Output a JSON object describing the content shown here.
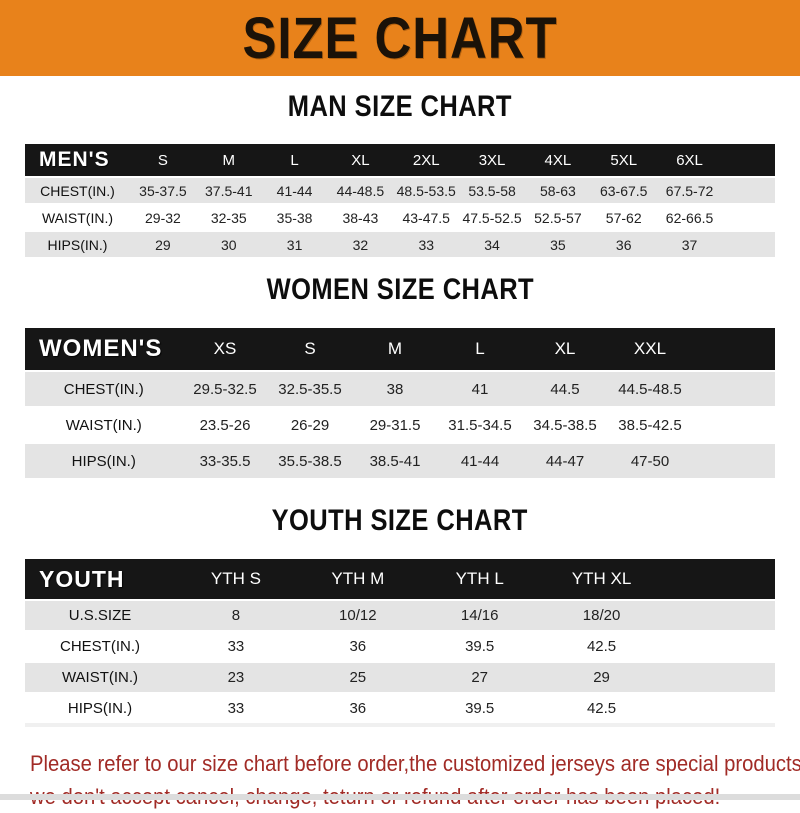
{
  "banner": {
    "title": "SIZE CHART"
  },
  "sections": [
    {
      "title": "MAN SIZE CHART",
      "header_label": "MEN'S",
      "columns": [
        "S",
        "M",
        "L",
        "XL",
        "2XL",
        "3XL",
        "4XL",
        "5XL",
        "6XL"
      ],
      "rows": [
        {
          "label": "CHEST(IN.)",
          "values": [
            "35-37.5",
            "37.5-41",
            "41-44",
            "44-48.5",
            "48.5-53.5",
            "53.5-58",
            "58-63",
            "63-67.5",
            "67.5-72"
          ]
        },
        {
          "label": "WAIST(IN.)",
          "values": [
            "29-32",
            "32-35",
            "35-38",
            "38-43",
            "43-47.5",
            "47.5-52.5",
            "52.5-57",
            "57-62",
            "62-66.5"
          ]
        },
        {
          "label": "HIPS(IN.)",
          "values": [
            "29",
            "30",
            "31",
            "32",
            "33",
            "34",
            "35",
            "36",
            "37"
          ]
        }
      ]
    },
    {
      "title": "WOMEN SIZE CHART",
      "header_label": "WOMEN'S",
      "columns": [
        "XS",
        "S",
        "M",
        "L",
        "XL",
        "XXL"
      ],
      "rows": [
        {
          "label": "CHEST(IN.)",
          "values": [
            "29.5-32.5",
            "32.5-35.5",
            "38",
            "41",
            "44.5",
            "44.5-48.5"
          ]
        },
        {
          "label": "WAIST(IN.)",
          "values": [
            "23.5-26",
            "26-29",
            "29-31.5",
            "31.5-34.5",
            "34.5-38.5",
            "38.5-42.5"
          ]
        },
        {
          "label": "HIPS(IN.)",
          "values": [
            "33-35.5",
            "35.5-38.5",
            "38.5-41",
            "41-44",
            "44-47",
            "47-50"
          ]
        }
      ]
    },
    {
      "title": "YOUTH SIZE CHART",
      "header_label": "YOUTH",
      "columns": [
        "YTH S",
        "YTH M",
        "YTH L",
        "YTH XL"
      ],
      "rows": [
        {
          "label": "U.S.SIZE",
          "values": [
            "8",
            "10/12",
            "14/16",
            "18/20"
          ]
        },
        {
          "label": "CHEST(IN.)",
          "values": [
            "33",
            "36",
            "39.5",
            "42.5"
          ]
        },
        {
          "label": "WAIST(IN.)",
          "values": [
            "23",
            "25",
            "27",
            "29"
          ]
        },
        {
          "label": "HIPS(IN.)",
          "values": [
            "33",
            "36",
            "39.5",
            "42.5"
          ]
        }
      ]
    }
  ],
  "footer": {
    "line1": "Please refer to our size chart before order,the customized jerseys are special products,",
    "line2": "we don't accept cancel, change, teturn or refund after order has been placed!"
  },
  "colors": {
    "banner_bg": "#E8821B",
    "table_header_bg": "#161616",
    "row_shade": "#E4E4E4",
    "note_text": "#A12B26"
  }
}
